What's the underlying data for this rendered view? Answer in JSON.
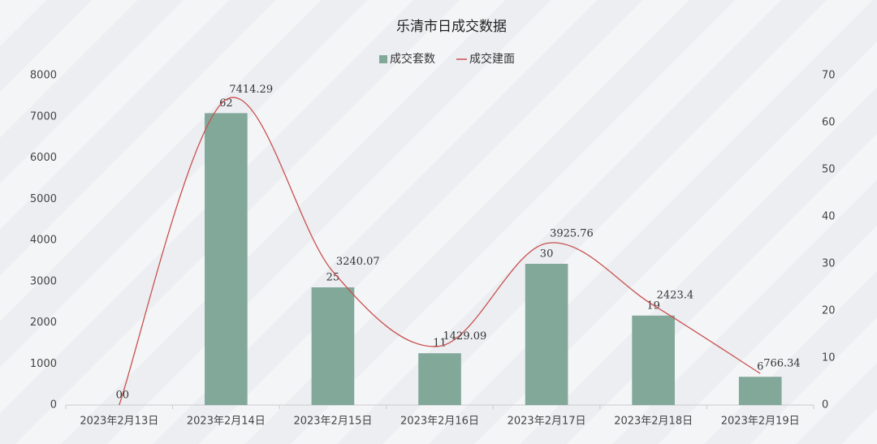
{
  "chart_data": {
    "type": "bar_line",
    "title": "乐清市日成交数据",
    "categories": [
      "2023年2月13日",
      "2023年2月14日",
      "2023年2月15日",
      "2023年2月16日",
      "2023年2月17日",
      "2023年2月18日",
      "2023年2月19日"
    ],
    "series": [
      {
        "name": "成交套数",
        "type": "bar",
        "axis": "y2",
        "color": "#82a89a",
        "values": [
          0,
          62,
          25,
          11,
          30,
          19,
          6
        ]
      },
      {
        "name": "成交建面",
        "type": "line",
        "smooth": true,
        "color": "#c9504f",
        "values": [
          0,
          7414.29,
          3240.07,
          1429.09,
          3925.76,
          2423.4,
          766.34
        ]
      }
    ],
    "ylim": [
      0,
      8000
    ],
    "yticks": [
      0,
      1000,
      2000,
      3000,
      4000,
      5000,
      6000,
      7000,
      8000
    ],
    "y2lim": [
      0,
      70
    ],
    "y2ticks": [
      0,
      10,
      20,
      30,
      40,
      50,
      60,
      70
    ],
    "legend": "top"
  }
}
